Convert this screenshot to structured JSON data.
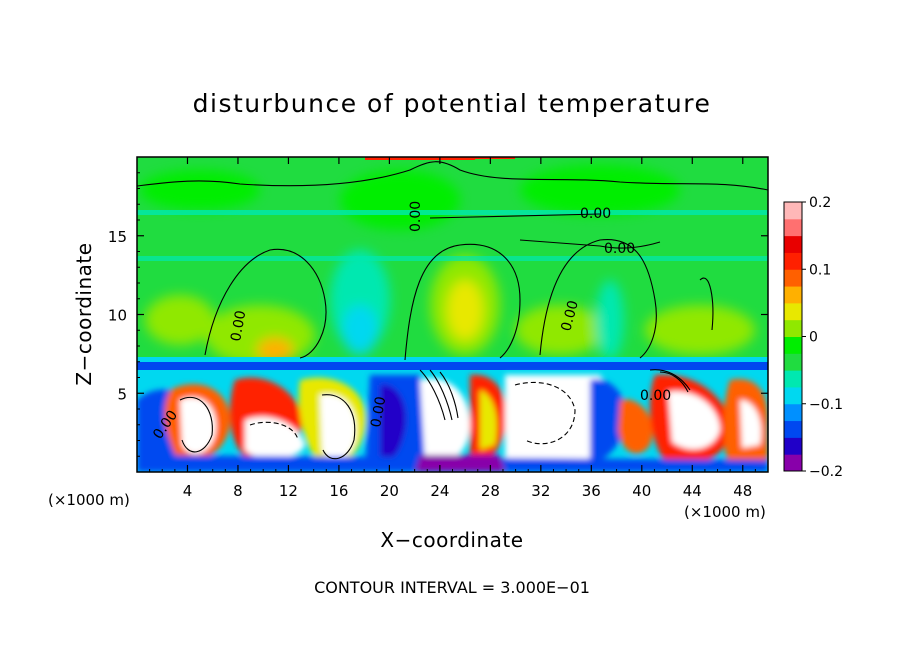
{
  "chart_data": {
    "type": "heatmap",
    "title": "disturbunce of potential temperature",
    "xlabel": "X−coordinate",
    "ylabel": "Z−coordinate",
    "x_unit": "(×1000 m)",
    "y_unit": "(×1000 m)",
    "xlim": [
      0,
      50
    ],
    "ylim": [
      0,
      20
    ],
    "x_ticks": [
      "4",
      "8",
      "12",
      "16",
      "20",
      "24",
      "28",
      "32",
      "36",
      "40",
      "44",
      "48"
    ],
    "y_ticks": [
      "5",
      "10",
      "15"
    ],
    "colorbar": {
      "range": [
        -0.2,
        0.2
      ],
      "tick_labels": [
        "0.2",
        "0.1",
        "0",
        "−0.1",
        "−0.2"
      ],
      "colors": [
        "#8800aa",
        "#2000c8",
        "#0048f0",
        "#0090ff",
        "#00d8f0",
        "#00e8b0",
        "#20dc40",
        "#00ee00",
        "#90e800",
        "#e8e800",
        "#ffb000",
        "#ff6000",
        "#ff2000",
        "#e80000",
        "#ff7070",
        "#ffb8b8"
      ]
    },
    "contour_labels": [
      "0.00",
      "0.00",
      "0.00",
      "0.00",
      "0.00",
      "0.00",
      "0.00",
      "0.00"
    ],
    "contour_interval_text": "CONTOUR INTERVAL = 3.000E−01",
    "grid": false
  }
}
